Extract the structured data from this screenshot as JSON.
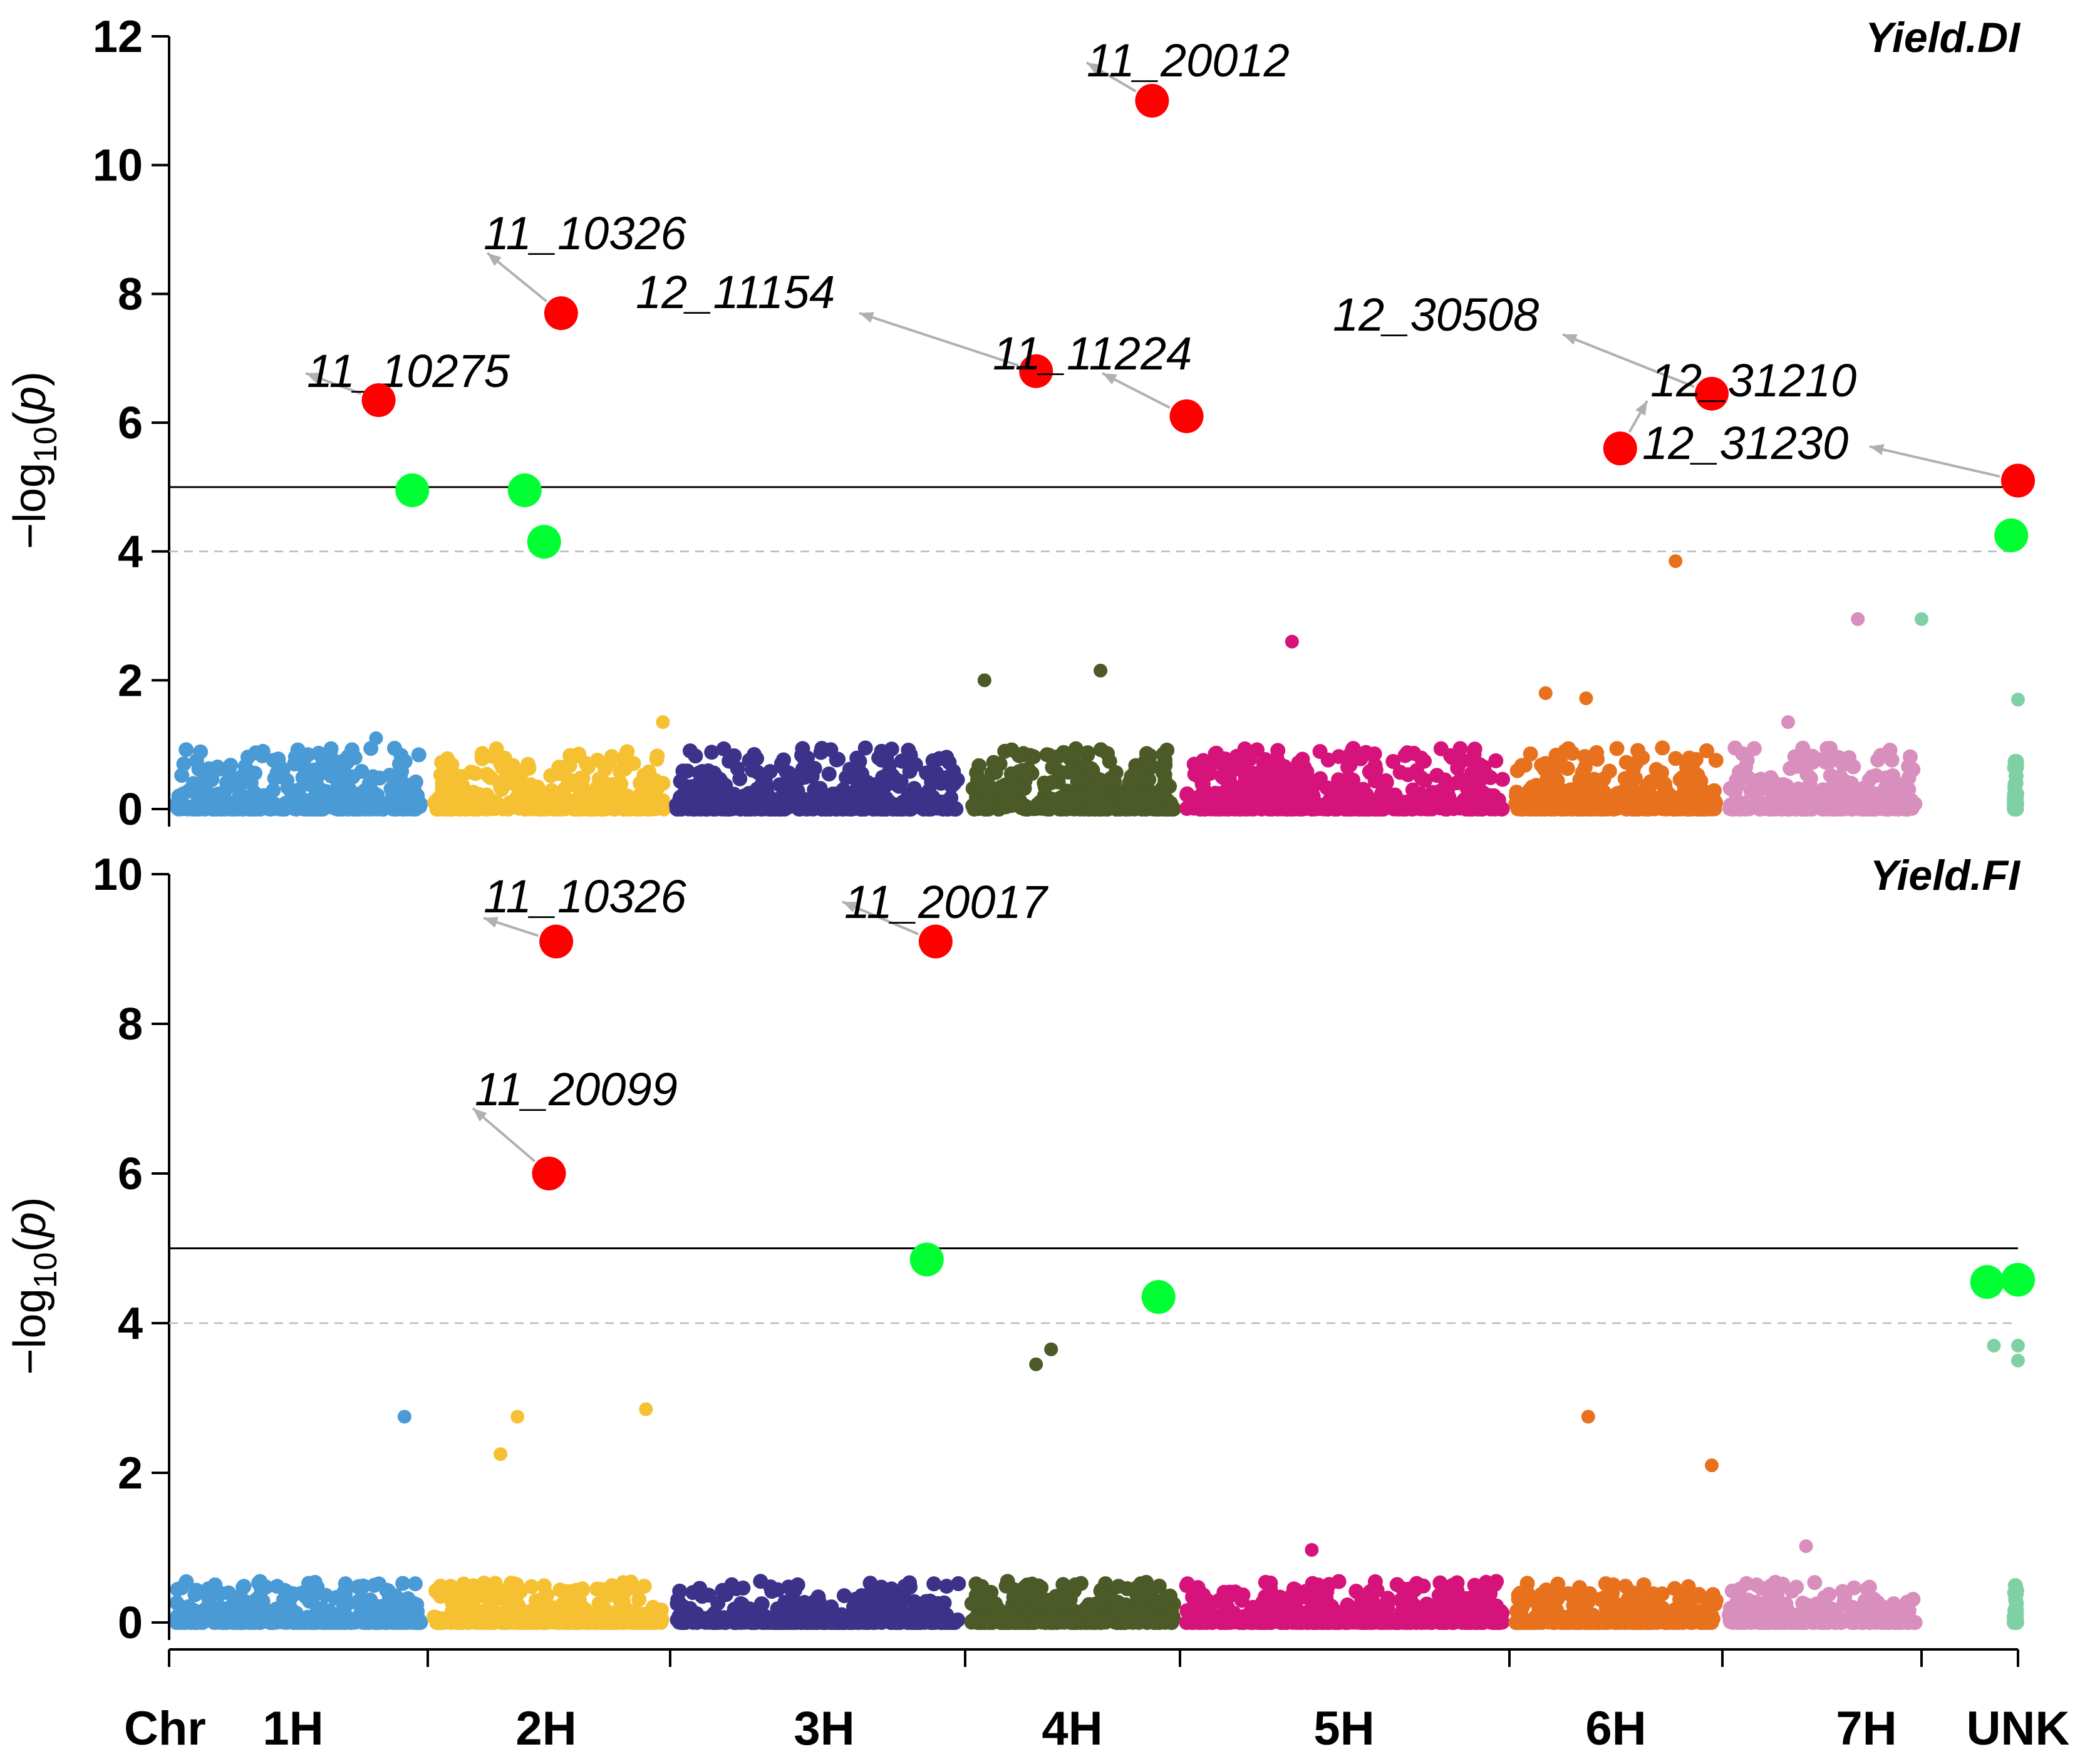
{
  "chart_data": [
    {
      "type": "scatter",
      "subtype": "manhattan",
      "title": "Yield.DI",
      "ylabel": "-log10(p)",
      "ylim": [
        0,
        12
      ],
      "yticks": [
        0,
        2,
        4,
        6,
        8,
        10,
        12
      ],
      "significance_line": 5,
      "suggestive_line": 4,
      "highlighted": [
        {
          "marker": "11_20012",
          "x": 3.87,
          "y": 11.0,
          "color": "#ff0000"
        },
        {
          "marker": "11_10326",
          "x": 1.55,
          "y": 7.7,
          "color": "#ff0000"
        },
        {
          "marker": "12_11154",
          "x": 3.33,
          "y": 6.8,
          "color": "#ff0000"
        },
        {
          "marker": "11_10275",
          "x": 0.81,
          "y": 6.35,
          "color": "#ff0000"
        },
        {
          "marker": "11_11224",
          "x": 4.02,
          "y": 6.1,
          "color": "#ff0000"
        },
        {
          "marker": "12_30508",
          "x": 5.95,
          "y": 6.45,
          "color": "#ff0000"
        },
        {
          "marker": "12_31210",
          "x": 5.52,
          "y": 5.6,
          "color": "#ff0000"
        },
        {
          "marker": "12_31230",
          "x": 8.0,
          "y": 5.1,
          "color": "#ff0000"
        }
      ],
      "suggestive_points": [
        {
          "x": 0.94,
          "y": 4.95
        },
        {
          "x": 1.4,
          "y": 4.95
        },
        {
          "x": 1.48,
          "y": 4.15
        },
        {
          "x": 7.93,
          "y": 4.25
        }
      ],
      "background_outliers": [
        {
          "x": 5.78,
          "y": 3.85
        },
        {
          "x": 6.68,
          "y": 2.95
        },
        {
          "x": 7.0,
          "y": 2.95
        },
        {
          "x": 4.34,
          "y": 2.6
        },
        {
          "x": 3.63,
          "y": 2.15
        },
        {
          "x": 3.09,
          "y": 2.0
        },
        {
          "x": 5.17,
          "y": 1.8
        },
        {
          "x": 5.36,
          "y": 1.72
        },
        {
          "x": 8.0,
          "y": 1.7
        },
        {
          "x": 6.33,
          "y": 1.35
        },
        {
          "x": 1.97,
          "y": 1.35
        },
        {
          "x": 0.8,
          "y": 1.1
        }
      ]
    },
    {
      "type": "scatter",
      "subtype": "manhattan",
      "title": "Yield.FI",
      "ylabel": "-log10(p)",
      "ylim": [
        0,
        10
      ],
      "yticks": [
        0,
        2,
        4,
        6,
        8,
        10
      ],
      "significance_line": 5,
      "suggestive_line": 4,
      "highlighted": [
        {
          "marker": "11_10326",
          "x": 1.53,
          "y": 9.1,
          "color": "#ff0000"
        },
        {
          "marker": "11_20017",
          "x": 2.9,
          "y": 9.1,
          "color": "#ff0000"
        },
        {
          "marker": "11_20099",
          "x": 1.5,
          "y": 6.0,
          "color": "#ff0000"
        }
      ],
      "suggestive_points": [
        {
          "x": 2.87,
          "y": 4.85
        },
        {
          "x": 3.9,
          "y": 4.35
        },
        {
          "x": 7.68,
          "y": 4.55
        },
        {
          "x": 8.0,
          "y": 4.58
        }
      ],
      "background_outliers": [
        {
          "x": 7.75,
          "y": 3.7
        },
        {
          "x": 8.0,
          "y": 3.7
        },
        {
          "x": 8.0,
          "y": 3.5
        },
        {
          "x": 3.4,
          "y": 3.65
        },
        {
          "x": 3.33,
          "y": 3.45
        },
        {
          "x": 1.9,
          "y": 2.85
        },
        {
          "x": 0.91,
          "y": 2.75
        },
        {
          "x": 1.37,
          "y": 2.75
        },
        {
          "x": 1.3,
          "y": 2.25
        },
        {
          "x": 5.37,
          "y": 2.75
        },
        {
          "x": 5.95,
          "y": 2.1
        },
        {
          "x": 6.42,
          "y": 1.02
        },
        {
          "x": 4.4,
          "y": 0.97
        }
      ]
    }
  ],
  "x_axis": {
    "chr_label": "Chr",
    "chromosomes": [
      {
        "label": "1H",
        "start": 0.0,
        "end": 1.0,
        "center": 0.5,
        "color": "#4a9ad6"
      },
      {
        "label": "2H",
        "start": 1.0,
        "end": 2.0,
        "center": 1.5,
        "color": "#f5c132"
      },
      {
        "label": "3H",
        "start": 2.0,
        "end": 3.0,
        "center": 2.5,
        "color": "#3d3289"
      },
      {
        "label": "4H",
        "start": 3.0,
        "end": 4.0,
        "center": 3.5,
        "color": "#4b5a26"
      },
      {
        "label": "5H",
        "start": 4.0,
        "end": 5.0,
        "center": 4.5,
        "color": "#d6137b"
      },
      {
        "label": "6H",
        "start": 5.0,
        "end": 6.0,
        "center": 5.5,
        "color": "#e8711e"
      },
      {
        "label": "7H",
        "start": 6.0,
        "end": 7.0,
        "center": 6.5,
        "color": "#d98fbd"
      },
      {
        "label": "UNK",
        "start": 7.0,
        "end": 8.0,
        "center": 7.5,
        "color": "#7fd1a5"
      }
    ]
  },
  "colors": {
    "significant": "#ff0000",
    "suggestive": "#00ff33",
    "arrow": "#b0b0b0",
    "threshold_line": "#000000",
    "suggestive_line": "#bbbbbb"
  }
}
